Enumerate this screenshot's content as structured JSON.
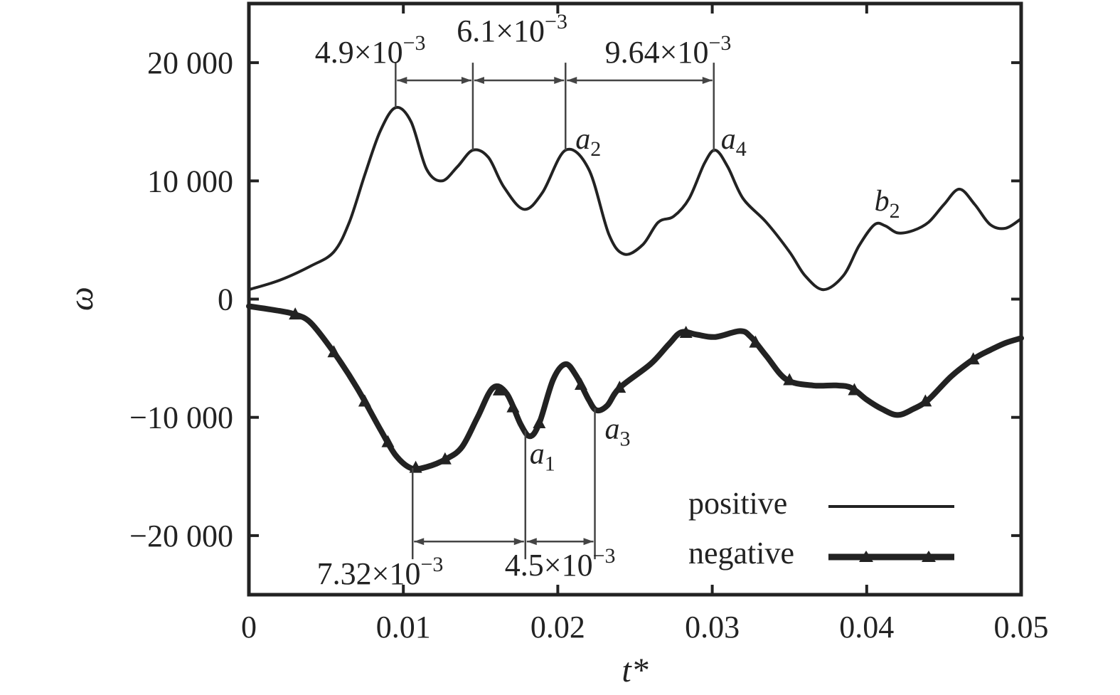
{
  "chart_data": {
    "type": "line",
    "xlabel": "t*",
    "ylabel": "ω",
    "xlim": [
      0,
      0.05
    ],
    "ylim": [
      -25000,
      25000
    ],
    "x_ticks": [
      0,
      0.01,
      0.02,
      0.03,
      0.04,
      0.05
    ],
    "x_tick_labels": [
      "0",
      "0.01",
      "0.02",
      "0.03",
      "0.04",
      "0.05"
    ],
    "y_ticks": [
      20000,
      10000,
      0,
      -10000,
      -20000
    ],
    "y_tick_labels": [
      "20 000",
      "10 000",
      "0",
      "−10 000",
      "−20 000"
    ],
    "grid": false,
    "legend_position": "bottom-right",
    "series": [
      {
        "name": "positive",
        "color": "#222222",
        "marker": "none",
        "x": [
          0,
          0.002,
          0.004,
          0.0055,
          0.0065,
          0.0075,
          0.0085,
          0.0095,
          0.0105,
          0.0115,
          0.0125,
          0.0135,
          0.0145,
          0.0155,
          0.0165,
          0.0178,
          0.019,
          0.0205,
          0.022,
          0.0233,
          0.0243,
          0.0255,
          0.0265,
          0.0275,
          0.0285,
          0.0295,
          0.0302,
          0.031,
          0.032,
          0.0335,
          0.035,
          0.036,
          0.0372,
          0.0385,
          0.0395,
          0.0405,
          0.0412,
          0.042,
          0.043,
          0.044,
          0.045,
          0.046,
          0.047,
          0.048,
          0.049,
          0.05
        ],
        "values": [
          800,
          1600,
          2800,
          4000,
          6500,
          10500,
          14200,
          16200,
          15000,
          11000,
          10000,
          11200,
          12600,
          12000,
          9500,
          7600,
          9000,
          12600,
          11000,
          5500,
          3800,
          4600,
          6500,
          7000,
          8500,
          11500,
          12600,
          11200,
          8500,
          6500,
          4000,
          2000,
          800,
          2000,
          4500,
          6300,
          6200,
          5600,
          5800,
          6500,
          8000,
          9300,
          8000,
          6300,
          6000,
          6800
        ]
      },
      {
        "name": "negative",
        "color": "#222222",
        "marker": "triangle",
        "x": [
          0,
          0.002,
          0.003,
          0.004,
          0.0055,
          0.007,
          0.0085,
          0.0095,
          0.0105,
          0.0115,
          0.0128,
          0.0138,
          0.0148,
          0.0158,
          0.0167,
          0.0176,
          0.0182,
          0.0188,
          0.0197,
          0.0205,
          0.0212,
          0.022,
          0.0225,
          0.0232,
          0.024,
          0.026,
          0.0272,
          0.028,
          0.029,
          0.0302,
          0.0318,
          0.0325,
          0.0335,
          0.0348,
          0.0365,
          0.038,
          0.039,
          0.04,
          0.041,
          0.042,
          0.043,
          0.044,
          0.0455,
          0.047,
          0.048,
          0.049,
          0.05
        ],
        "values": [
          -600,
          -1000,
          -1300,
          -2000,
          -4500,
          -7500,
          -11000,
          -13200,
          -14300,
          -14200,
          -13500,
          -12500,
          -10000,
          -7500,
          -8000,
          -10600,
          -11600,
          -10500,
          -6800,
          -5500,
          -6500,
          -8500,
          -9400,
          -9000,
          -7500,
          -5500,
          -3800,
          -2800,
          -3000,
          -3200,
          -2700,
          -3200,
          -4800,
          -6800,
          -7300,
          -7300,
          -7500,
          -8500,
          -9300,
          -9800,
          -9300,
          -8500,
          -6500,
          -5000,
          -4300,
          -3700,
          -3300
        ],
        "marker_x": [
          0.003,
          0.0055,
          0.0075,
          0.009,
          0.0108,
          0.0127,
          0.0162,
          0.0171,
          0.0188,
          0.0215,
          0.024,
          0.0283,
          0.0328,
          0.035,
          0.0392,
          0.0438,
          0.0469
        ]
      }
    ],
    "annotations": {
      "intervals": [
        {
          "label_main": "4.9×10",
          "label_exp": "−3",
          "x_start": 0.0095,
          "x_end": 0.0145,
          "y": 18500
        },
        {
          "label_main": "6.1×10",
          "label_exp": "−3",
          "x_start": 0.0145,
          "x_end": 0.0205,
          "y": 18500
        },
        {
          "label_main": "9.64×10",
          "label_exp": "−3",
          "x_start": 0.0205,
          "x_end": 0.0301,
          "y": 18500
        },
        {
          "label_main": "7.32×10",
          "label_exp": "−3",
          "x_start": 0.0106,
          "x_end": 0.0179,
          "y": -20500
        },
        {
          "label_main": "4.5×10",
          "label_exp": "−3",
          "x_start": 0.0179,
          "x_end": 0.0224,
          "y": -20500
        }
      ],
      "points": [
        {
          "letter": "a",
          "sub": "2",
          "x": 0.0205,
          "y": 12600
        },
        {
          "letter": "a",
          "sub": "4",
          "x": 0.0301,
          "y": 12600
        },
        {
          "letter": "b",
          "sub": "2",
          "x": 0.0405,
          "y": 6300
        },
        {
          "letter": "a",
          "sub": "1",
          "x": 0.0179,
          "y": -11600
        },
        {
          "letter": "a",
          "sub": "3",
          "x": 0.0224,
          "y": -9400
        }
      ]
    }
  }
}
